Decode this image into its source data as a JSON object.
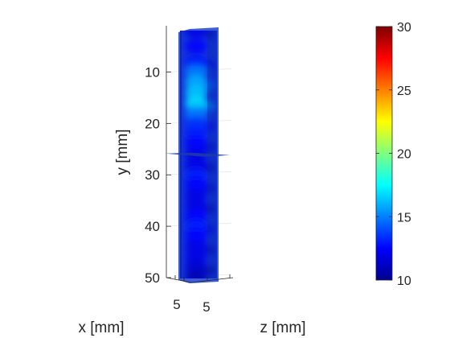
{
  "chart_data": {
    "type": "heatmap",
    "title": "",
    "ylabel": "y [mm]",
    "xlabel": "x [mm]",
    "zlabel": "z [mm]",
    "y_ticks": [
      "10",
      "20",
      "30",
      "40",
      "50"
    ],
    "y_tick_values": [
      10,
      20,
      30,
      40,
      50
    ],
    "ylim": [
      1,
      50
    ],
    "x_ticks": [
      "5"
    ],
    "z_ticks": [
      "5"
    ],
    "slice_plane_y": 26,
    "colorbar": {
      "ticks": [
        "10",
        "15",
        "20",
        "25",
        "30"
      ],
      "tick_values": [
        10,
        15,
        20,
        25,
        30
      ],
      "range": [
        10,
        30
      ],
      "colormap": "jet"
    },
    "intensity_profile": {
      "y": [
        2,
        5,
        8,
        10,
        12,
        14,
        16,
        18,
        20,
        22,
        24,
        26,
        28,
        30,
        32,
        34,
        36,
        38,
        40,
        42,
        44,
        46,
        48,
        50
      ],
      "value": [
        12,
        12.5,
        13,
        15,
        16,
        16.5,
        17,
        15,
        13.5,
        13,
        12.5,
        12,
        12,
        13,
        12.5,
        12,
        12,
        12.5,
        13,
        12.5,
        12,
        12,
        11.5,
        11
      ]
    }
  },
  "colors": {
    "axis": "#262626",
    "grid": "#e6e6e6",
    "background": "#ffffff",
    "slice_plane": "#1e3aa8"
  }
}
